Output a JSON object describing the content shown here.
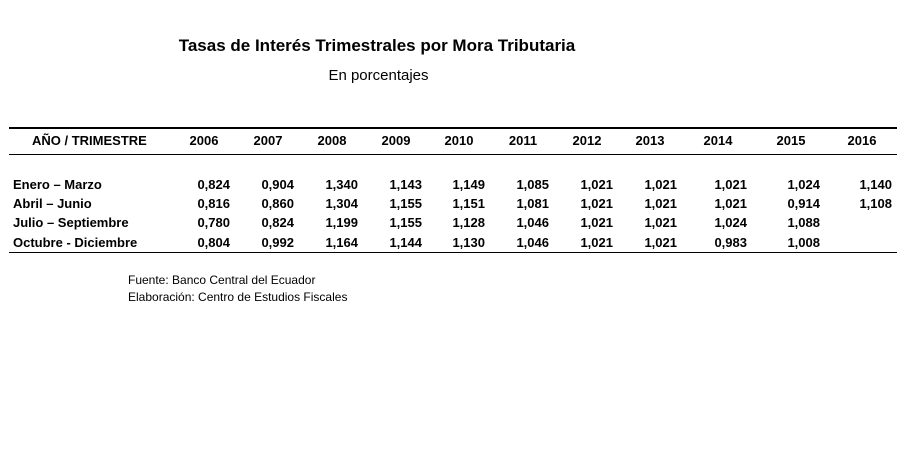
{
  "title": "Tasas de Interés Trimestrales por Mora Tributaria",
  "subtitle": "En porcentajes",
  "table": {
    "header_label": "AÑO / TRIMESTRE",
    "years": [
      "2006",
      "2007",
      "2008",
      "2009",
      "2010",
      "2011",
      "2012",
      "2013",
      "2014",
      "2015",
      "2016"
    ],
    "rows": [
      {
        "label": "Enero – Marzo",
        "values": [
          "0,824",
          "0,904",
          "1,340",
          "1,143",
          "1,149",
          "1,085",
          "1,021",
          "1,021",
          "1,021",
          "1,024",
          "1,140"
        ]
      },
      {
        "label": "Abril – Junio",
        "values": [
          "0,816",
          "0,860",
          "1,304",
          "1,155",
          "1,151",
          "1,081",
          "1,021",
          "1,021",
          "1,021",
          "0,914",
          "1,108"
        ]
      },
      {
        "label": "Julio – Septiembre",
        "values": [
          "0,780",
          "0,824",
          "1,199",
          "1,155",
          "1,128",
          "1,046",
          "1,021",
          "1,021",
          "1,024",
          "1,088",
          ""
        ]
      },
      {
        "label": "Octubre - Diciembre",
        "values": [
          "0,804",
          "0,992",
          "1,164",
          "1,144",
          "1,130",
          "1,046",
          "1,021",
          "1,021",
          "0,983",
          "1,008",
          ""
        ]
      }
    ]
  },
  "footer": {
    "source": "Fuente: Banco Central del Ecuador",
    "elaboration": "Elaboración: Centro de Estudios Fiscales"
  }
}
